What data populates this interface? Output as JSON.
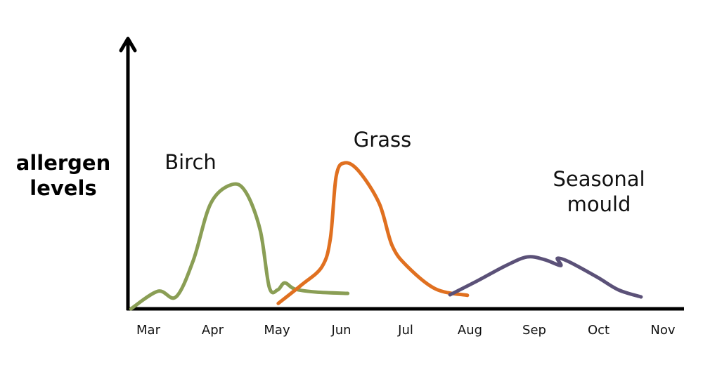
{
  "chart_data": {
    "type": "line",
    "title": "",
    "ylabel_lines": [
      "allergen",
      "levels"
    ],
    "xlabel": "",
    "categories": [
      "Mar",
      "Apr",
      "May",
      "Jun",
      "Jul",
      "Aug",
      "Sep",
      "Oct",
      "Nov"
    ],
    "ylim": [
      0,
      100
    ],
    "grid": false,
    "series": [
      {
        "name": "Birch",
        "label_lines": [
          "Birch"
        ],
        "color": "#8a9e55",
        "points": [
          [
            -0.27,
            0
          ],
          [
            0.15,
            6.5
          ],
          [
            0.43,
            4.4
          ],
          [
            0.7,
            18
          ],
          [
            0.97,
            39
          ],
          [
            1.3,
            46
          ],
          [
            1.52,
            43
          ],
          [
            1.74,
            29
          ],
          [
            1.88,
            8
          ],
          [
            2.01,
            7
          ],
          [
            2.12,
            9.6
          ],
          [
            2.28,
            7.3
          ],
          [
            2.61,
            6.2
          ],
          [
            3.1,
            5.7
          ]
        ]
      },
      {
        "name": "Grass",
        "label_lines": [
          "Grass"
        ],
        "color": "#e07020",
        "points": [
          [
            2.02,
            2
          ],
          [
            2.39,
            9
          ],
          [
            2.7,
            15.6
          ],
          [
            2.83,
            26
          ],
          [
            2.92,
            49
          ],
          [
            3.05,
            54
          ],
          [
            3.27,
            51
          ],
          [
            3.59,
            39
          ],
          [
            3.79,
            23.4
          ],
          [
            4.03,
            15.6
          ],
          [
            4.47,
            7.3
          ],
          [
            4.96,
            5
          ]
        ]
      },
      {
        "name": "Seasonal mould",
        "label_lines": [
          "Seasonal",
          "mould"
        ],
        "color": "#5b5178",
        "points": [
          [
            4.69,
            5.2
          ],
          [
            5.12,
            10.4
          ],
          [
            5.56,
            16
          ],
          [
            5.89,
            19.2
          ],
          [
            6.16,
            18.2
          ],
          [
            6.41,
            16
          ],
          [
            6.36,
            18.7
          ],
          [
            6.54,
            17.4
          ],
          [
            6.98,
            11.7
          ],
          [
            7.31,
            7
          ],
          [
            7.66,
            4.4
          ]
        ]
      }
    ]
  }
}
